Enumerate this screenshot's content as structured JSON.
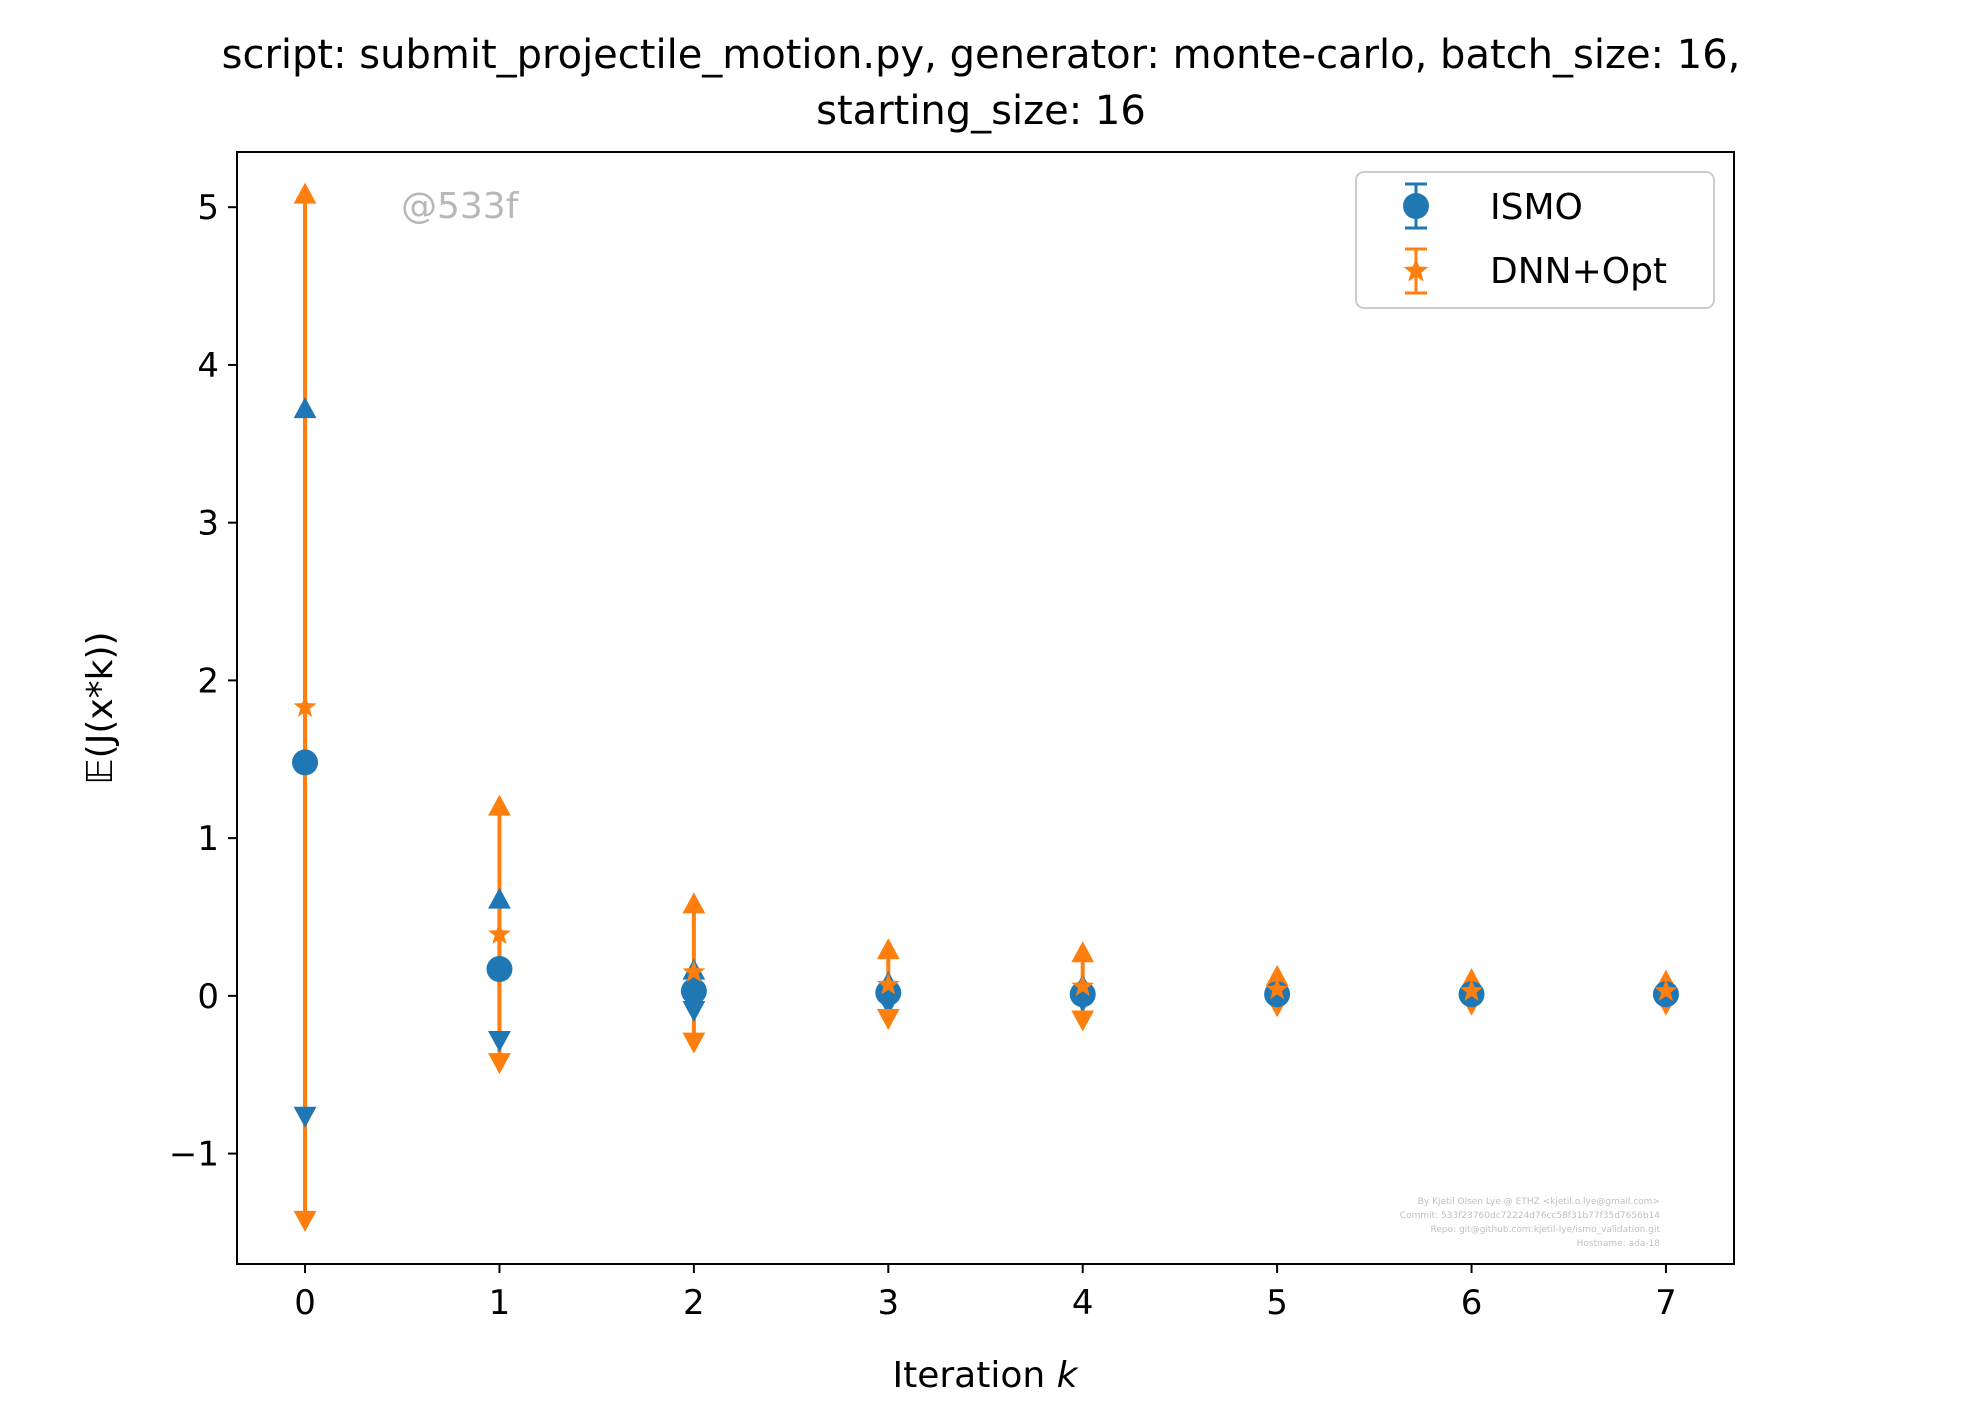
{
  "chart_data": {
    "type": "errorbar",
    "title_lines": [
      "script: submit_projectile_motion.py, generator: monte-carlo, batch_size: 16,",
      "starting_size: 16"
    ],
    "xlabel": "Iteration k",
    "ylabel": "𝔼(J(x*k))",
    "xlim": [
      -0.35,
      7.35
    ],
    "ylim": [
      -1.7,
      5.35
    ],
    "x_ticks": [
      0,
      1,
      2,
      3,
      4,
      5,
      6,
      7
    ],
    "y_ticks": [
      -1,
      0,
      1,
      2,
      3,
      4,
      5
    ],
    "y_tick_labels": [
      "−1",
      "0",
      "1",
      "2",
      "3",
      "4",
      "5"
    ],
    "grid": false,
    "legend_position": "top-right",
    "x": [
      0,
      1,
      2,
      3,
      4,
      5,
      6,
      7
    ],
    "series": [
      {
        "name": "ISMO",
        "color": "#1f77b4",
        "marker": "circle",
        "values": [
          1.48,
          0.17,
          0.03,
          0.02,
          0.01,
          0.01,
          0.01,
          0.01
        ],
        "upper": [
          3.72,
          0.61,
          0.16,
          0.08,
          0.06,
          0.04,
          0.03,
          0.03
        ],
        "lower": [
          -0.76,
          -0.28,
          -0.09,
          -0.05,
          -0.03,
          -0.02,
          -0.02,
          -0.01
        ]
      },
      {
        "name": "DNN+Opt",
        "color": "#ff7f0e",
        "marker": "star",
        "values": [
          1.83,
          0.39,
          0.15,
          0.07,
          0.06,
          0.04,
          0.03,
          0.03
        ],
        "upper": [
          5.08,
          1.2,
          0.58,
          0.29,
          0.27,
          0.12,
          0.1,
          0.09
        ],
        "lower": [
          -1.42,
          -0.42,
          -0.29,
          -0.14,
          -0.15,
          -0.06,
          -0.05,
          -0.05
        ]
      }
    ],
    "watermark": "@533f",
    "footer_lines": [
      "By Kjetil Olsen Lye @ ETHZ <kjetil.o.lye@gmail.com>",
      "Commit: 533f23760dc72224d76cc58f31b77f35d7656b14",
      "Repo: git@github.com:kjetil-lye/ismo_validation.git",
      "Hostname: ada-18"
    ]
  }
}
